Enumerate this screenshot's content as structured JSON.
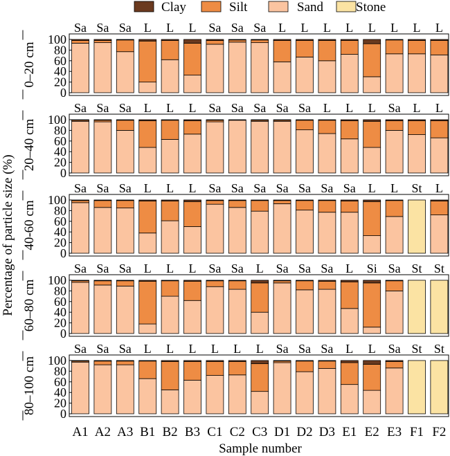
{
  "chart_data": {
    "type": "bar",
    "stacked": true,
    "orientation": "vertical",
    "categories": [
      "A1",
      "A2",
      "A3",
      "B1",
      "B2",
      "B3",
      "C1",
      "C2",
      "C3",
      "D1",
      "D2",
      "D3",
      "E1",
      "E2",
      "E3",
      "F1",
      "F2"
    ],
    "xlabel": "Sample number",
    "ylabel": "Percentage of particle size (%)",
    "ylim": [
      0,
      100
    ],
    "yticks": [
      0,
      20,
      40,
      60,
      80,
      100
    ],
    "legend": {
      "placement": "top",
      "entries": [
        {
          "name": "Clay",
          "color": "#6b3a1f"
        },
        {
          "name": "Silt",
          "color": "#ee8c44"
        },
        {
          "name": "Sand",
          "color": "#fbc4a0"
        },
        {
          "name": "Stone",
          "color": "#fbe3a3"
        }
      ]
    },
    "series_order": [
      "Sand",
      "Silt",
      "Clay",
      "Stone"
    ],
    "colors": {
      "Clay": "#6b3a1f",
      "Silt": "#ee8c44",
      "Sand": "#fbc4a0",
      "Stone": "#fbe3a3"
    },
    "panels": [
      {
        "label": "0–20 cm",
        "texture": [
          "Sa",
          "Sa",
          "Sa",
          "L",
          "L",
          "L",
          "Sa",
          "Sa",
          "Sa",
          "L",
          "L",
          "L",
          "L",
          "L",
          "L",
          "L",
          "L"
        ],
        "series": [
          {
            "name": "Sand",
            "values": [
              93,
              94,
              77,
              20,
              62,
              33,
              91,
              95,
              94,
              58,
              67,
              60,
              72,
              30,
              73,
              73,
              71
            ]
          },
          {
            "name": "Silt",
            "values": [
              5,
              4,
              22,
              77,
              36,
              60,
              7,
              4,
              5,
              40,
              31,
              38,
              26,
              62,
              26,
              25,
              27
            ]
          },
          {
            "name": "Clay",
            "values": [
              2,
              2,
              1,
              3,
              2,
              7,
              2,
              1,
              1,
              2,
              2,
              2,
              2,
              8,
              1,
              2,
              2
            ]
          },
          {
            "name": "Stone",
            "values": [
              0,
              0,
              0,
              0,
              0,
              0,
              0,
              0,
              0,
              0,
              0,
              0,
              0,
              0,
              0,
              0,
              0
            ]
          }
        ]
      },
      {
        "label": "20–40 cm",
        "texture": [
          "Sa",
          "Sa",
          "Sa",
          "L",
          "L",
          "L",
          "Sa",
          "Sa",
          "Sa",
          "Sa",
          "Sa",
          "L",
          "L",
          "L",
          "Sa",
          "L",
          "L"
        ],
        "series": [
          {
            "name": "Sand",
            "values": [
              97,
              96,
              80,
              48,
              63,
              73,
              96,
              99,
              97,
              97,
              81,
              74,
              64,
              48,
              80,
              72,
              66
            ]
          },
          {
            "name": "Silt",
            "values": [
              2,
              3,
              19,
              50,
              36,
              25,
              3,
              1,
              2,
              2,
              18,
              25,
              34,
              49,
              18,
              26,
              32
            ]
          },
          {
            "name": "Clay",
            "values": [
              1,
              1,
              1,
              2,
              1,
              2,
              1,
              0,
              1,
              1,
              1,
              1,
              2,
              3,
              2,
              2,
              2
            ]
          },
          {
            "name": "Stone",
            "values": [
              0,
              0,
              0,
              0,
              0,
              0,
              0,
              0,
              0,
              0,
              0,
              0,
              0,
              0,
              0,
              0,
              0
            ]
          }
        ]
      },
      {
        "label": "40-60 cm",
        "texture": [
          "Sa",
          "Sa",
          "Sa",
          "L",
          "L",
          "L",
          "Sa",
          "Sa",
          "Sa",
          "Sa",
          "Sa",
          "Sa",
          "Sa",
          "L",
          "L",
          "St",
          "L"
        ],
        "series": [
          {
            "name": "Sand",
            "values": [
              95,
              86,
              85,
              38,
              61,
              50,
              92,
              86,
              79,
              93,
              81,
              77,
              77,
              33,
              69,
              0,
              72
            ]
          },
          {
            "name": "Silt",
            "values": [
              4,
              13,
              14,
              60,
              37,
              47,
              7,
              13,
              20,
              6,
              18,
              22,
              21,
              64,
              30,
              0,
              26
            ]
          },
          {
            "name": "Clay",
            "values": [
              1,
              1,
              1,
              2,
              2,
              3,
              1,
              1,
              1,
              1,
              1,
              1,
              2,
              3,
              1,
              0,
              2
            ]
          },
          {
            "name": "Stone",
            "values": [
              0,
              0,
              0,
              0,
              0,
              0,
              0,
              0,
              0,
              0,
              0,
              0,
              0,
              0,
              0,
              100,
              0
            ]
          }
        ]
      },
      {
        "label": "60–80 cm",
        "texture": [
          "Sa",
          "Sa",
          "Sa",
          "L",
          "L",
          "L",
          "Sa",
          "Sa",
          "L",
          "Sa",
          "Sa",
          "Sa",
          "L",
          "Si",
          "Sa",
          "St",
          "St"
        ],
        "series": [
          {
            "name": "Sand",
            "values": [
              96,
              91,
              89,
              18,
              70,
              62,
              88,
              83,
              40,
              95,
              82,
              83,
              47,
              12,
              80,
              0,
              0
            ]
          },
          {
            "name": "Silt",
            "values": [
              3,
              8,
              10,
              80,
              29,
              36,
              11,
              16,
              55,
              4,
              17,
              15,
              50,
              83,
              19,
              0,
              0
            ]
          },
          {
            "name": "Clay",
            "values": [
              1,
              1,
              1,
              2,
              1,
              2,
              1,
              1,
              5,
              1,
              1,
              2,
              3,
              5,
              1,
              0,
              0
            ]
          },
          {
            "name": "Stone",
            "values": [
              0,
              0,
              0,
              0,
              0,
              0,
              0,
              0,
              0,
              0,
              0,
              0,
              0,
              0,
              0,
              100,
              100
            ]
          }
        ]
      },
      {
        "label": "80–100 cm",
        "texture": [
          "Sa",
          "Sa",
          "Sa",
          "L",
          "L",
          "L",
          "L",
          "L",
          "L",
          "Sa",
          "Sa",
          "Sa",
          "L",
          "L",
          "Sa",
          "St",
          "St"
        ],
        "series": [
          {
            "name": "Sand",
            "values": [
              97,
              92,
              92,
              66,
              45,
              63,
              72,
              73,
              42,
              96,
              79,
              85,
              55,
              44,
              86,
              0,
              0
            ]
          },
          {
            "name": "Silt",
            "values": [
              2,
              7,
              7,
              33,
              53,
              35,
              26,
              25,
              52,
              3,
              20,
              14,
              41,
              49,
              12,
              0,
              0
            ]
          },
          {
            "name": "Clay",
            "values": [
              1,
              1,
              1,
              1,
              2,
              2,
              2,
              2,
              6,
              1,
              1,
              1,
              4,
              7,
              2,
              0,
              0
            ]
          },
          {
            "name": "Stone",
            "values": [
              0,
              0,
              0,
              0,
              0,
              0,
              0,
              0,
              0,
              0,
              0,
              0,
              0,
              0,
              0,
              100,
              100
            ]
          }
        ]
      }
    ]
  }
}
